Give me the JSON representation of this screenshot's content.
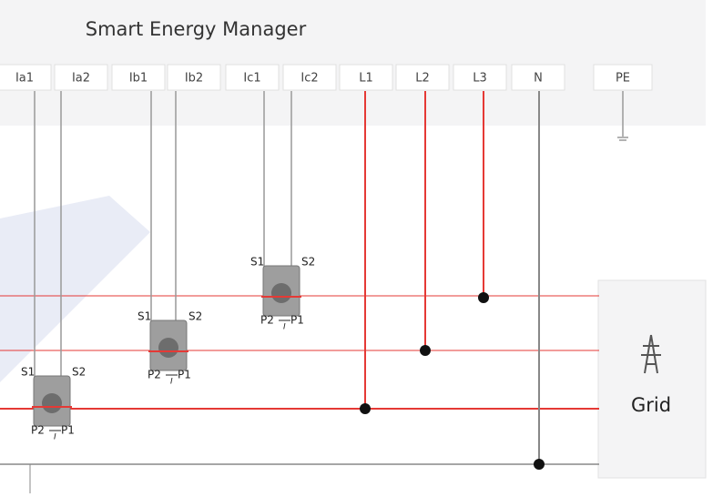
{
  "header": {
    "title": "Smart Energy Manager"
  },
  "terminals": [
    "Ia1",
    "Ia2",
    "Ib1",
    "Ib2",
    "Ic1",
    "Ic2",
    "L1",
    "L2",
    "L3",
    "N",
    "PE"
  ],
  "cts": [
    {
      "s1": "S1",
      "s2": "S2",
      "p2": "P2",
      "p1": "P1",
      "i": "I"
    },
    {
      "s1": "S1",
      "s2": "S2",
      "p2": "P2",
      "p1": "P1",
      "i": "I"
    },
    {
      "s1": "S1",
      "s2": "S2",
      "p2": "P2",
      "p1": "P1",
      "i": "I"
    }
  ],
  "grid": {
    "label": "Grid"
  }
}
